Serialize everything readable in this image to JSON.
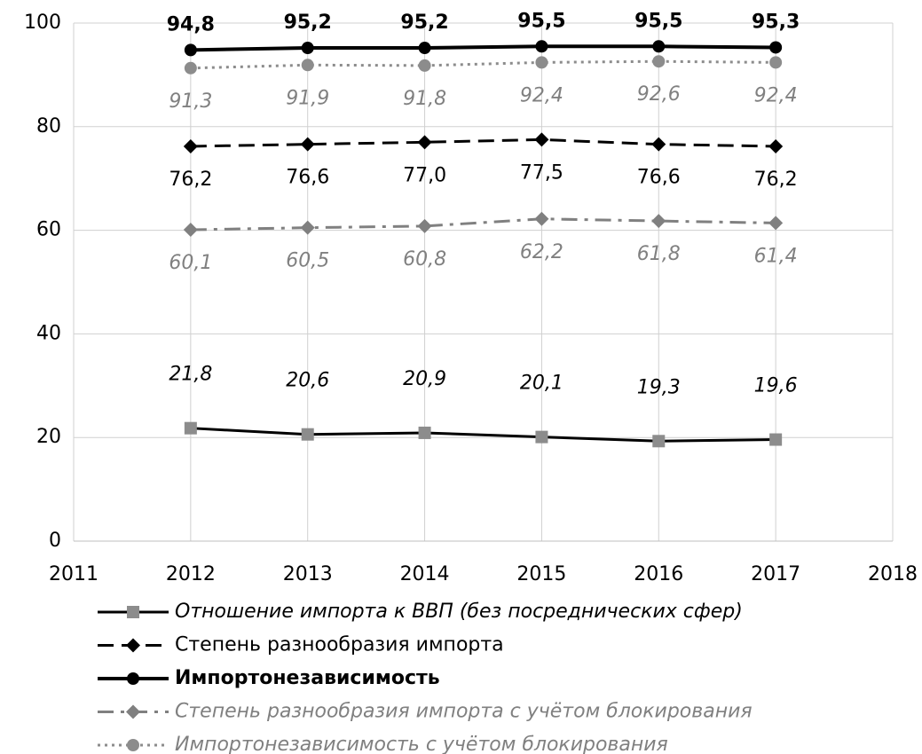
{
  "chart_data": {
    "type": "line",
    "x": [
      2012,
      2013,
      2014,
      2015,
      2016,
      2017
    ],
    "xlim": [
      2011,
      2018
    ],
    "xticks": [
      2011,
      2012,
      2013,
      2014,
      2015,
      2016,
      2017,
      2018
    ],
    "ylim": [
      0,
      100
    ],
    "yticks": [
      0,
      20,
      40,
      60,
      80,
      100
    ],
    "grid": true,
    "legend": "bottom",
    "series": [
      {
        "name": "Отношение импорта к ВВП (без посреднических сфер)",
        "color": "#000000",
        "marker": "square",
        "marker_color": "#8c8c8c",
        "dash": "solid",
        "label_position": "above",
        "label_style": "italic",
        "label_color": "#000000",
        "values": [
          21.8,
          20.6,
          20.9,
          20.1,
          19.3,
          19.6
        ],
        "value_labels": [
          "21,8",
          "20,6",
          "20,9",
          "20,1",
          "19,3",
          "19,6"
        ]
      },
      {
        "name": "Степень разнообразия импорта",
        "color": "#000000",
        "marker": "diamond",
        "marker_color": "#000000",
        "dash": "dashed",
        "label_position": "below",
        "label_style": "normal",
        "label_color": "#000000",
        "values": [
          76.2,
          76.6,
          77.0,
          77.5,
          76.6,
          76.2
        ],
        "value_labels": [
          "76,2",
          "76,6",
          "77,0",
          "77,5",
          "76,6",
          "76,2"
        ]
      },
      {
        "name": "Импортонезависимость",
        "color": "#000000",
        "marker": "circle",
        "marker_color": "#000000",
        "dash": "solid",
        "label_position": "above",
        "label_style": "bold",
        "label_color": "#000000",
        "values": [
          94.8,
          95.2,
          95.2,
          95.5,
          95.5,
          95.3
        ],
        "value_labels": [
          "94,8",
          "95,2",
          "95,2",
          "95,5",
          "95,5",
          "95,3"
        ]
      },
      {
        "name": "Степень разнообразия импорта с учётом блокирования",
        "color": "#808080",
        "marker": "diamond",
        "marker_color": "#808080",
        "dash": "dashdot",
        "label_position": "below",
        "label_style": "italic",
        "label_color": "#808080",
        "values": [
          60.1,
          60.5,
          60.8,
          62.2,
          61.8,
          61.4
        ],
        "value_labels": [
          "60,1",
          "60,5",
          "60,8",
          "62,2",
          "61,8",
          "61,4"
        ]
      },
      {
        "name": "Импортонезависимость с учётом блокирования",
        "color": "#8c8c8c",
        "marker": "circle",
        "marker_color": "#8c8c8c",
        "dash": "dotted",
        "label_position": "below",
        "label_style": "italic",
        "label_color": "#808080",
        "values": [
          91.3,
          91.9,
          91.8,
          92.4,
          92.6,
          92.4
        ],
        "value_labels": [
          "91,3",
          "91,9",
          "91,8",
          "92,4",
          "92,6",
          "92,4"
        ]
      }
    ]
  }
}
